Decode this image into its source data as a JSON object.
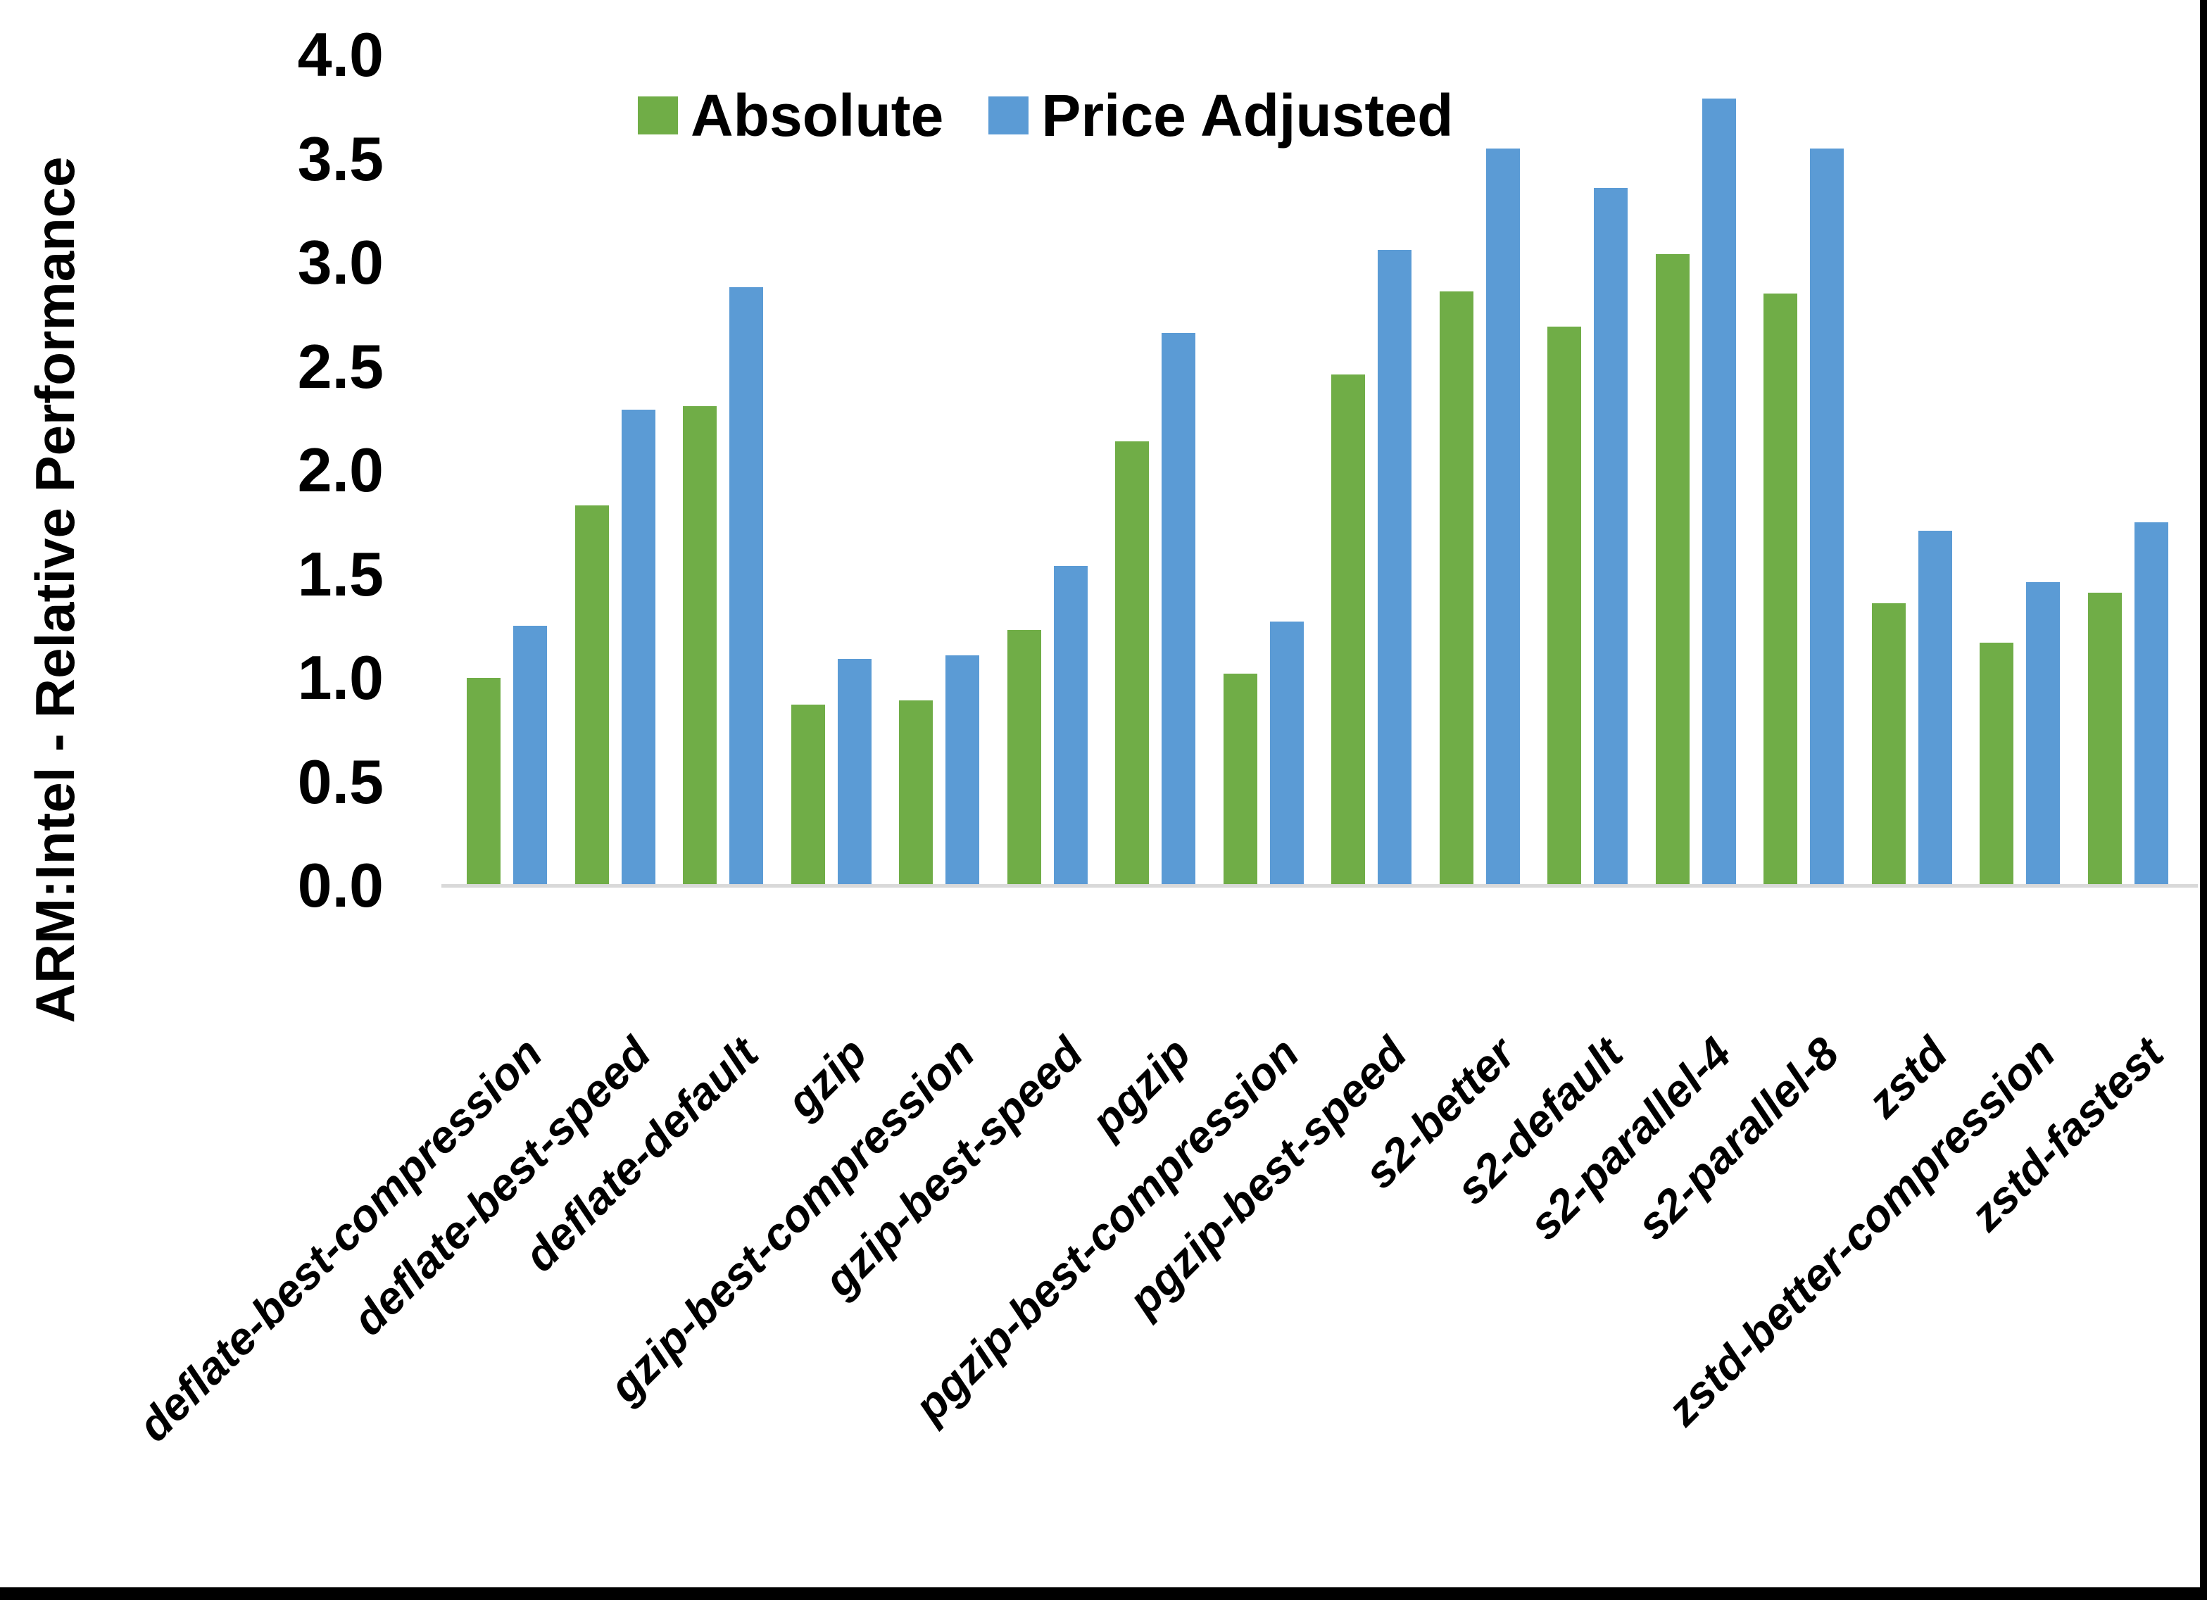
{
  "chart_data": {
    "type": "bar",
    "title": "",
    "ylabel": "ARM:Intel - Relative Performance",
    "xlabel": "",
    "ylim": [
      0.0,
      4.0
    ],
    "ytick_step": 0.5,
    "ytick_labels": [
      "0.0",
      "0.5",
      "1.0",
      "1.5",
      "2.0",
      "2.5",
      "3.0",
      "3.5",
      "4.0"
    ],
    "grid": false,
    "legend_position": "top-center-inside",
    "axis_line_color": "#D9D9D9",
    "categories": [
      "deflate-best-compression",
      "deflate-best-speed",
      "deflate-default",
      "gzip",
      "gzip-best-compression",
      "gzip-best-speed",
      "pgzip",
      "pgzip-best-compression",
      "pgzip-best-speed",
      "s2-better",
      "s2-default",
      "s2-parallel-4",
      "s2-parallel-8",
      "zstd",
      "zstd-better-compression",
      "zstd-fastest"
    ],
    "series": [
      {
        "name": "Absolute",
        "color": "#70AD47",
        "values": [
          1.0,
          1.83,
          2.31,
          0.87,
          0.89,
          1.23,
          2.14,
          1.02,
          2.46,
          2.86,
          2.69,
          3.04,
          2.85,
          1.36,
          1.17,
          1.41
        ]
      },
      {
        "name": "Price Adjusted",
        "color": "#5B9BD5",
        "values": [
          1.25,
          2.29,
          2.88,
          1.09,
          1.11,
          1.54,
          2.66,
          1.27,
          3.06,
          3.55,
          3.36,
          3.79,
          3.55,
          1.71,
          1.46,
          1.75
        ]
      }
    ]
  },
  "frame": {
    "border_color": "#000000",
    "background_color": "#FFFFFF"
  }
}
